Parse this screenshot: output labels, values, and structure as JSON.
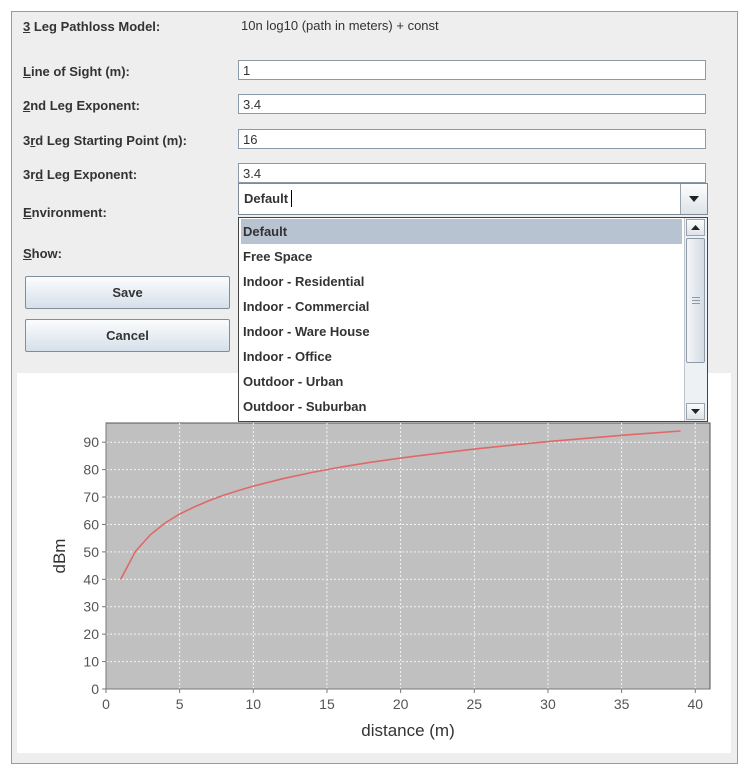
{
  "form": {
    "pathloss_label_accel": "3",
    "pathloss_label_rest": " Leg Pathloss Model:",
    "pathloss_formula": "10n log10 (path in meters) + const",
    "los_label_accel": "L",
    "los_label_rest": "ine of Sight (m):",
    "los_value": "1",
    "exp2_label_accel": "2",
    "exp2_label_rest": "nd Leg Exponent:",
    "exp2_value": "3.4",
    "start3_label_pre": "3",
    "start3_label_accel": "r",
    "start3_label_rest": "d Leg Starting Point (m):",
    "start3_value": "16",
    "exp3_label_pre": "3r",
    "exp3_label_accel": "d",
    "exp3_label_rest": " Leg Exponent:",
    "exp3_value": "3.4",
    "env_label_accel": "E",
    "env_label_rest": "nvironment:",
    "env_value": "Default",
    "show_label_accel": "S",
    "show_label_rest": "how:"
  },
  "buttons": {
    "save": "Save",
    "cancel": "Cancel"
  },
  "dropdown": {
    "items": [
      "Default",
      "Free Space",
      "Indoor - Residential",
      "Indoor - Commercial",
      "Indoor - Ware House",
      "Indoor - Office",
      "Outdoor - Urban",
      "Outdoor - Suburban"
    ],
    "selected_index": 0
  },
  "chart_data": {
    "type": "line",
    "xlabel": "distance (m)",
    "ylabel": "dBm",
    "xlim": [
      0,
      41
    ],
    "ylim": [
      0,
      97
    ],
    "xticks": [
      0,
      5,
      10,
      15,
      20,
      25,
      30,
      35,
      40
    ],
    "yticks": [
      0,
      10,
      20,
      30,
      40,
      50,
      60,
      70,
      80,
      90
    ],
    "grid": true,
    "colors": {
      "plot_bg": "#c0c0c0",
      "line": "#e06868"
    },
    "series": [
      {
        "x": [
          1,
          2,
          3,
          4,
          5,
          6,
          7,
          8,
          9,
          10,
          12,
          14,
          16,
          18,
          20,
          22,
          25,
          28,
          30,
          33,
          36,
          39
        ],
        "values": [
          40,
          50.2,
          56.2,
          60.5,
          63.8,
          66.4,
          68.7,
          70.7,
          72.4,
          74,
          76.7,
          79,
          81,
          82.7,
          84.2,
          85.6,
          87.5,
          89.2,
          90.2,
          91.6,
          92.9,
          94.1
        ]
      }
    ]
  }
}
